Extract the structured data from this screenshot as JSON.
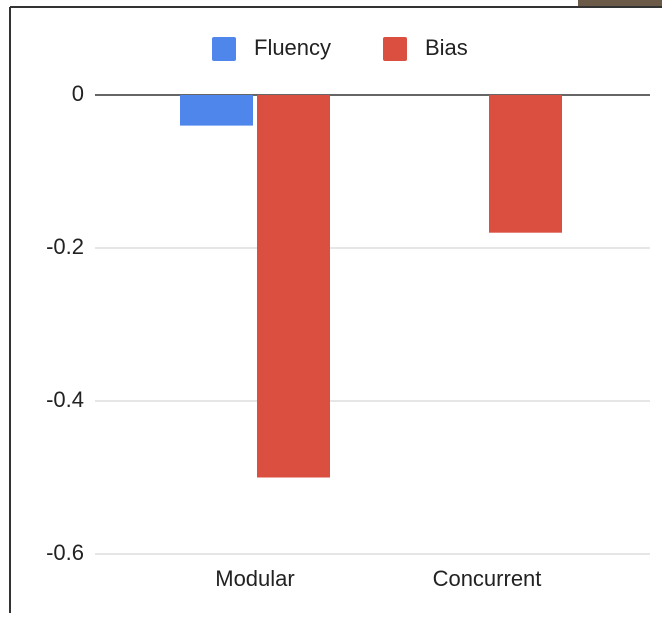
{
  "chart_data": {
    "type": "bar",
    "categories": [
      "Modular",
      "Concurrent"
    ],
    "series": [
      {
        "name": "Fluency",
        "color": "#4e86ec",
        "values": [
          -0.04,
          0
        ]
      },
      {
        "name": "Bias",
        "color": "#db4f40",
        "values": [
          -0.5,
          -0.18
        ]
      }
    ],
    "ylim": [
      -0.6,
      0
    ],
    "yticks": [
      0,
      -0.2,
      -0.4,
      -0.6
    ],
    "grid": true,
    "legend": "top"
  }
}
